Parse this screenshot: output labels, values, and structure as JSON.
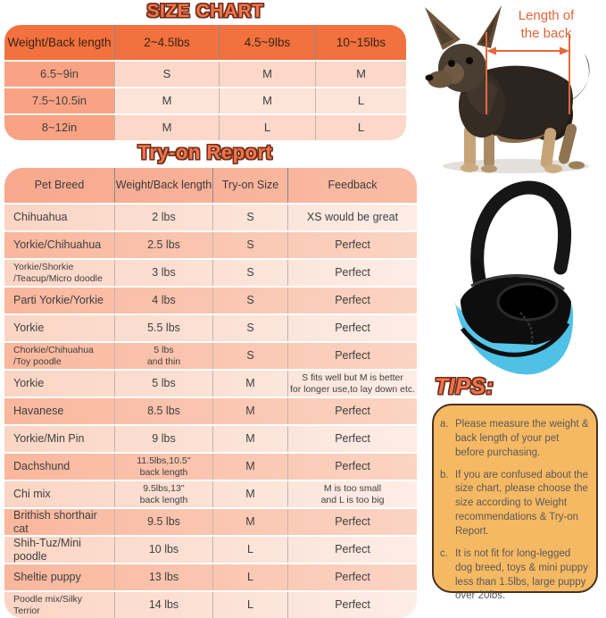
{
  "size_chart": {
    "title": "SIZE CHART",
    "table": {
      "header": [
        "Weight/Back length",
        "2~4.5lbs",
        "4.5~9lbs",
        "10~15lbs"
      ],
      "rows": [
        [
          "6.5~9in",
          "S",
          "M",
          "M"
        ],
        [
          "7.5~10.5in",
          "M",
          "M",
          "L"
        ],
        [
          "8~12in",
          "M",
          "L",
          "L"
        ]
      ]
    }
  },
  "tryon_report": {
    "title": "Try-on Report",
    "table": {
      "header": [
        "Pet Breed",
        "Weight/Back length",
        "Try-on Size",
        "Feedback"
      ],
      "rows": [
        [
          "Chihuahua",
          "2 lbs",
          "S",
          "XS would be great"
        ],
        [
          "Yorkie/Chihuahua",
          "2.5 lbs",
          "S",
          "Perfect"
        ],
        [
          "Yorkie/Shorkie\n/Teacup/Micro doodle",
          "3 lbs",
          "S",
          "Perfect"
        ],
        [
          "Parti Yorkie/Yorkie",
          "4 lbs",
          "S",
          "Perfect"
        ],
        [
          "Yorkie",
          "5.5 lbs",
          "S",
          "Perfect"
        ],
        [
          "Chorkie/Chihuahua\n/Toy poodle",
          "5 lbs\nand thin",
          "S",
          "Perfect"
        ],
        [
          "Yorkie",
          "5 lbs",
          "M",
          "S fits well but M is better\nfor longer use,to lay down etc."
        ],
        [
          "Havanese",
          "8.5 lbs",
          "M",
          "Perfect"
        ],
        [
          "Yorkie/Min Pin",
          "9 lbs",
          "M",
          "Perfect"
        ],
        [
          "Dachshund",
          "11.5lbs,10.5''\nback length",
          "M",
          "Perfect"
        ],
        [
          "Chi mix",
          "9.5lbs,13''\nback length",
          "M",
          "M is too small\nand L is too big"
        ],
        [
          "Brithish shorthair cat",
          "9.5 lbs",
          "M",
          "Perfect"
        ],
        [
          "Shih-Tuz/Mini poodle",
          "10 lbs",
          "L",
          "Perfect"
        ],
        [
          "Sheltie puppy",
          "13 lbs",
          "L",
          "Perfect"
        ],
        [
          "Poodle mix/Silky\n Terrior",
          "14 lbs",
          "L",
          "Perfect"
        ]
      ]
    }
  },
  "measurement": {
    "label": "Length of\nthe back"
  },
  "images": {
    "dog": "chihuahua-standing-photo",
    "bag": "blue-pet-sling-carrier-photo"
  },
  "tips": {
    "title": "TIPS:",
    "items": [
      {
        "label": "a.",
        "text": "Please measure the weight & back length of your pet before purchasing."
      },
      {
        "label": "b.",
        "text": "If you are confused about the size chart, please choose the size according to Weight recommendations & Try-on Report."
      },
      {
        "label": "c.",
        "text": "It is not fit for long-legged dog breed, toys & mini puppy less than 1.5lbs, large puppy over 20lbs."
      }
    ]
  },
  "colors": {
    "title_fill": "#F4744A",
    "title_outline": "#6E2F1C",
    "size_chart_header": "#F2713F",
    "first_column_salmon": "#F9A284",
    "row_light": "#FBD8C9",
    "row_lighter": "#FCE4D9",
    "tryon_row_dark": "#F9B79D",
    "tryon_row_light": "#FBD5C4",
    "annotation_orange": "#DE6438",
    "tips_box_fill": "#F6B963",
    "tips_box_border": "#45311F",
    "bag_blue": "#4FC0E6",
    "bag_black": "#111111"
  }
}
